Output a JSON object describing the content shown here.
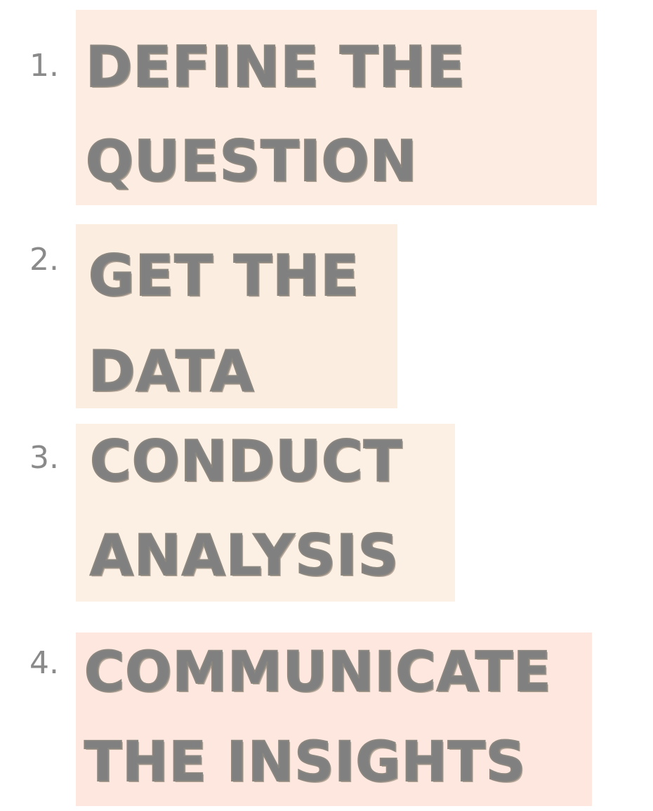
{
  "colors": {
    "box_1": "#fdece2",
    "box_2": "#fbede0",
    "box_3": "#fcefe3",
    "box_4": "#fde7df",
    "text": "#808080",
    "number": "#8a8a8a"
  },
  "steps": [
    {
      "number": "1.",
      "line1": "DEFINE THE",
      "line2": "QUESTION"
    },
    {
      "number": "2.",
      "line1": "GET THE",
      "line2": "DATA"
    },
    {
      "number": "3.",
      "line1": "CONDUCT",
      "line2": "ANALYSIS"
    },
    {
      "number": "4.",
      "line1": "COMMUNICATE",
      "line2": "THE INSIGHTS"
    }
  ]
}
